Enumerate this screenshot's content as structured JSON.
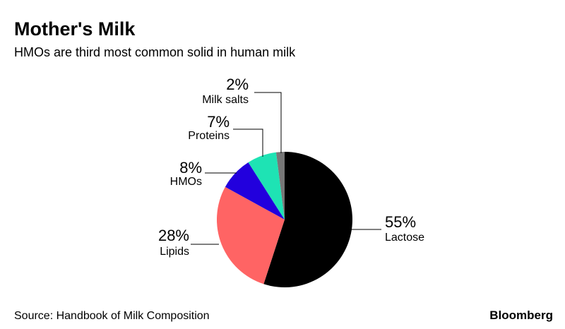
{
  "chart_data": {
    "type": "pie",
    "title": "Mother's Milk",
    "subtitle": "HMOs are third most common solid in human milk",
    "categories": [
      "Lactose",
      "Lipids",
      "HMOs",
      "Proteins",
      "Milk salts"
    ],
    "values": [
      55,
      28,
      8,
      7,
      2
    ],
    "value_labels": [
      "55%",
      "28%",
      "8%",
      "7%",
      "2%"
    ],
    "colors": [
      "#000000",
      "#ff6464",
      "#2200dd",
      "#1ee3b4",
      "#777777"
    ]
  },
  "source": "Source: Handbook of Milk Composition",
  "brand": "Bloomberg"
}
